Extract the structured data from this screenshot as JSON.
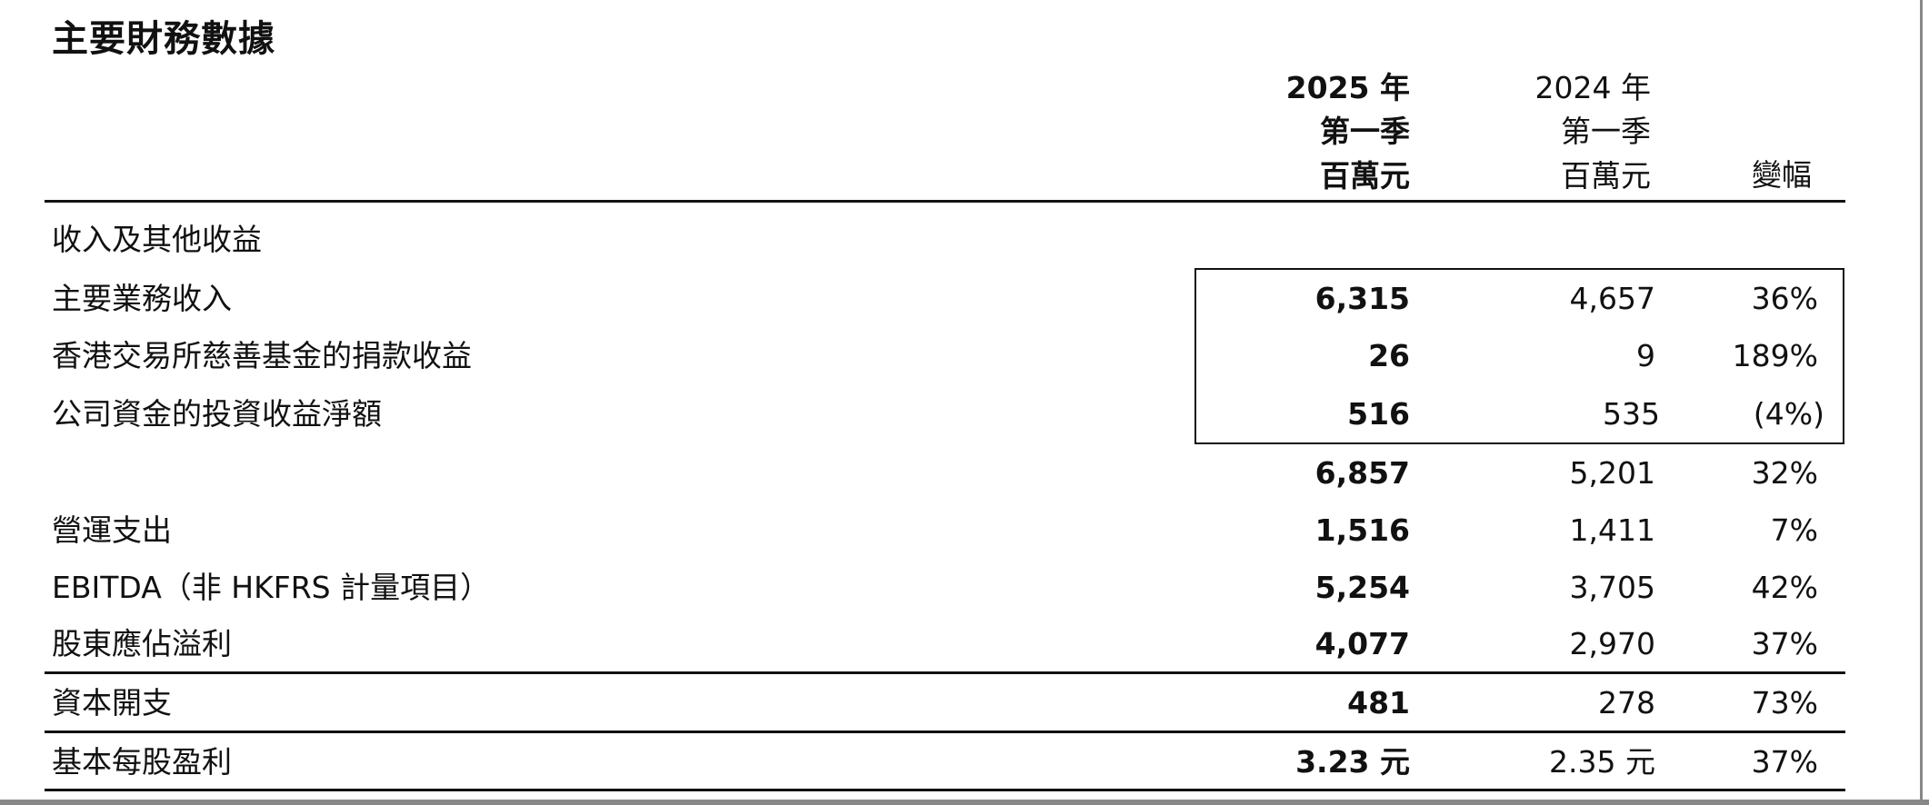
{
  "title": "主要財務數據",
  "header": {
    "col2025": [
      "2025 年",
      "第一季",
      "百萬元"
    ],
    "col2024": [
      "2024 年",
      "第一季",
      "百萬元"
    ],
    "change": "變幅"
  },
  "section_label": "收入及其他收益",
  "rows": [
    {
      "label": "主要業務收入",
      "v2025": "6,315",
      "v2024": "4,657",
      "change": "36%"
    },
    {
      "label": "香港交易所慈善基金的捐款收益",
      "v2025": "26",
      "v2024": "9",
      "change": "189%"
    },
    {
      "label": "公司資金的投資收益淨額",
      "v2025": "516",
      "v2024": "535",
      "change": "(4%)"
    },
    {
      "label": "",
      "v2025": "6,857",
      "v2024": "5,201",
      "change": "32%"
    },
    {
      "label": "營運支出",
      "v2025": "1,516",
      "v2024": "1,411",
      "change": "7%"
    },
    {
      "label": "EBITDA（非 HKFRS 計量項目）",
      "v2025": "5,254",
      "v2024": "3,705",
      "change": "42%"
    },
    {
      "label": "股東應佔溢利",
      "v2025": "4,077",
      "v2024": "2,970",
      "change": "37%"
    },
    {
      "label": "資本開支",
      "v2025": "481",
      "v2024": "278",
      "change": "73%"
    },
    {
      "label": "基本每股盈利",
      "v2025": "3.23 元",
      "v2024": "2.35 元",
      "change": "37%"
    }
  ]
}
